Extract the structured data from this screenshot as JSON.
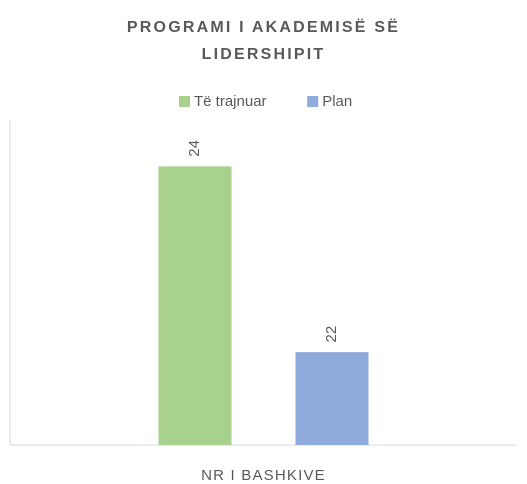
{
  "chart_data": {
    "type": "bar",
    "title": "PROGRAMI I AKADEMISË SË LIDERSHIPIT",
    "categories": [
      "NR I BASHKIVE"
    ],
    "series": [
      {
        "name": "Të trajnuar",
        "color": "#a9d18e",
        "values": [
          24
        ]
      },
      {
        "name": "Plan",
        "color": "#8faadc",
        "values": [
          22
        ]
      }
    ],
    "ylim": [
      21,
      24.5
    ],
    "legend": "top"
  }
}
